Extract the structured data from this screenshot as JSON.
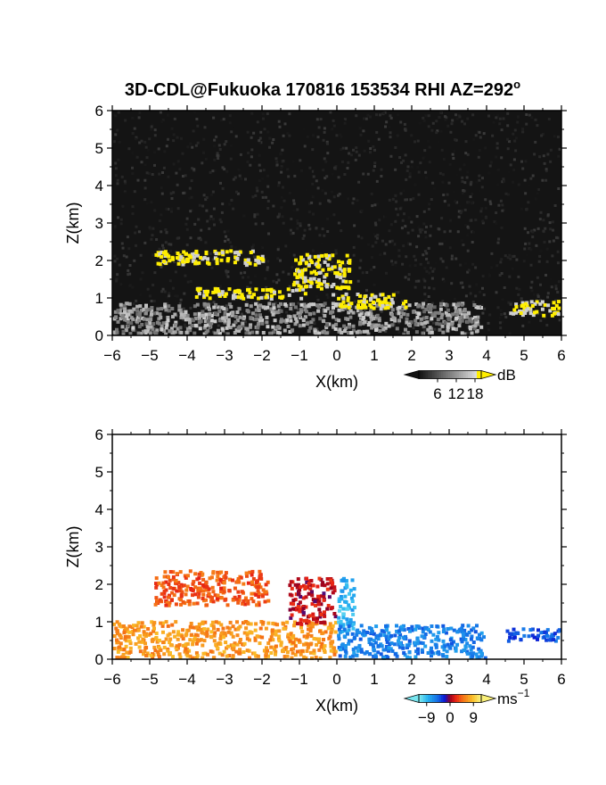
{
  "figure": {
    "title_main": "3D-CDL@Fukuoka 170816 153534 RHI AZ=292",
    "title_deg": "o"
  },
  "chart_data": [
    {
      "type": "heatmap",
      "quantity": "reflectivity",
      "xlabel": "X(km)",
      "ylabel": "Z(km)",
      "xlim": [
        -6,
        6
      ],
      "ylim": [
        0,
        6
      ],
      "xticks": [
        "−6",
        "−5",
        "−4",
        "−3",
        "−2",
        "−1",
        "0",
        "1",
        "2",
        "3",
        "4",
        "5",
        "6"
      ],
      "yticks": [
        "0",
        "1",
        "2",
        "3",
        "4",
        "5",
        "6"
      ],
      "background": "noise",
      "colorbar": {
        "unit": "dB",
        "ticks": [
          "6",
          "12",
          "18"
        ],
        "range": [
          0,
          20
        ],
        "high_color": "#ffee00"
      },
      "regions": [
        {
          "x": [
            -6.0,
            3.9
          ],
          "z_top": 0.9,
          "level": "medium"
        },
        {
          "x": [
            -4.9,
            -1.9
          ],
          "z": [
            1.85,
            2.3
          ],
          "level": "high"
        },
        {
          "x": [
            -3.8,
            -0.8
          ],
          "z": [
            0.95,
            1.3
          ],
          "level": "high"
        },
        {
          "x": [
            -1.2,
            0.4
          ],
          "z": [
            1.2,
            2.2
          ],
          "level": "high"
        },
        {
          "x": [
            -0.2,
            1.9
          ],
          "z": [
            0.7,
            1.15
          ],
          "level": "high"
        },
        {
          "x": [
            4.6,
            6.0
          ],
          "z": [
            0.5,
            0.95
          ],
          "level": "high"
        }
      ]
    },
    {
      "type": "heatmap",
      "quantity": "velocity",
      "xlabel": "X(km)",
      "ylabel": "Z(km)",
      "xlim": [
        -6,
        6
      ],
      "ylim": [
        0,
        6
      ],
      "xticks": [
        "−6",
        "−5",
        "−4",
        "−3",
        "−2",
        "−1",
        "0",
        "1",
        "2",
        "3",
        "4",
        "5",
        "6"
      ],
      "yticks": [
        "0",
        "1",
        "2",
        "3",
        "4",
        "5",
        "6"
      ],
      "colorbar": {
        "unit": "ms",
        "unit_exp": "−1",
        "ticks": [
          "−9",
          "0",
          "9"
        ],
        "range": [
          -12,
          12
        ]
      },
      "regions": [
        {
          "x": [
            -6.0,
            0.0
          ],
          "z": [
            0.0,
            1.05
          ],
          "velocity": 7
        },
        {
          "x": [
            -4.9,
            -1.8
          ],
          "z": [
            1.4,
            2.4
          ],
          "velocity": 4
        },
        {
          "x": [
            -1.3,
            0.0
          ],
          "z": [
            0.9,
            2.2
          ],
          "velocity": 1
        },
        {
          "x": [
            0.0,
            0.5
          ],
          "z": [
            0.7,
            2.2
          ],
          "velocity": -9
        },
        {
          "x": [
            0.0,
            4.0
          ],
          "z": [
            0.0,
            0.95
          ],
          "velocity": -6
        },
        {
          "x": [
            4.5,
            6.0
          ],
          "z": [
            0.45,
            0.85
          ],
          "velocity": -4
        }
      ]
    }
  ]
}
